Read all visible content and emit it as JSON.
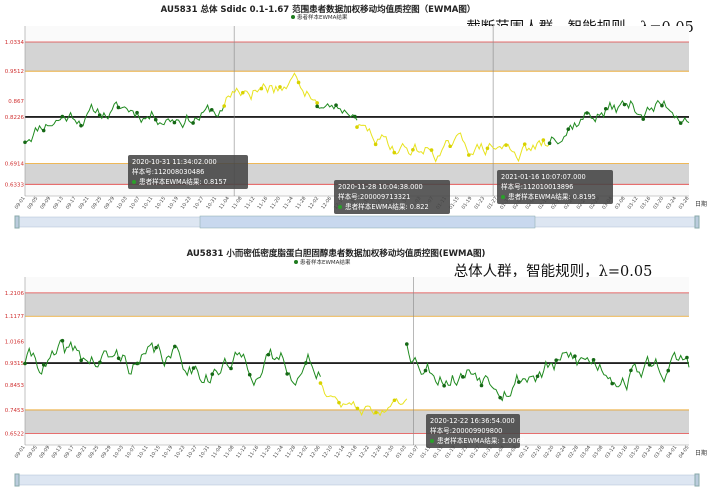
{
  "charts": [
    {
      "title": "AU5831 总体 Sdidc 0.1-1.67 范围患者数据加权移动均值质控图（EWMA图）",
      "caption": "截断范围人群，智能规则，λ=0.05",
      "legend": "患者样本EWMA结果",
      "axis_name": "日期",
      "y_ticks": [
        "1.0334",
        "0.9512",
        "0.867",
        "0.8226",
        "0.6914",
        "0.6333"
      ],
      "x_ticks": [
        "09-01",
        "09-05",
        "09-09",
        "09-13",
        "09-17",
        "09-21",
        "09-25",
        "09-29",
        "10-03",
        "10-07",
        "10-11",
        "10-15",
        "10-19",
        "10-23",
        "10-27",
        "10-31",
        "11-04",
        "11-08",
        "11-12",
        "11-16",
        "11-20",
        "11-24",
        "11-28",
        "12-02",
        "12-06",
        "12-10",
        "12-14",
        "12-18",
        "12-22",
        "12-26",
        "12-30",
        "01-03",
        "01-07",
        "01-11",
        "01-15",
        "01-19",
        "01-23",
        "01-27",
        "01-31",
        "02-04",
        "02-08",
        "02-12",
        "02-16",
        "02-20",
        "02-24",
        "02-28",
        "03-04",
        "03-08",
        "03-12",
        "03-16",
        "03-20",
        "03-24",
        "03-28"
      ],
      "tooltips": [
        {
          "l1": "2020-10-31 11:34:02.000",
          "l2": "样本号:112008030486",
          "l3": "患者样本EWMA结果: 0.8157"
        },
        {
          "l1": "2020-11-28 10:04:38.000",
          "l2": "样本号:200009713321",
          "l3": "患者样本EWMA结果: 0.822"
        },
        {
          "l1": "2021-01-16 10:07:07.000",
          "l2": "样本号:112010013896",
          "l3": "患者样本EWMA结果: 0.8195"
        }
      ],
      "chart_data": {
        "type": "line",
        "title": "AU5831 总体 Sdidc 0.1-1.67 范围患者数据加权移动均值质控图（EWMA图）",
        "xlabel": "日期",
        "ylabel": "",
        "ylim": [
          0.6333,
          1.0334
        ],
        "target": 0.8226,
        "warning_limits": [
          0.6914,
          0.9512
        ],
        "control_limits": [
          0.6333,
          1.0334
        ],
        "series": [
          {
            "name": "患者样本EWMA结果",
            "type": "normal",
            "segment": [
              0,
              0.3
            ],
            "start_y": 0.75,
            "base": 0.84,
            "amp": 0.04,
            "seed": 11
          },
          {
            "name": "",
            "type": "high",
            "segment": [
              0.3,
              0.44
            ],
            "start_y": 0.86,
            "base": 0.93,
            "amp": 0.05,
            "seed": 17
          },
          {
            "name": "",
            "type": "normal",
            "segment": [
              0.44,
              0.5
            ],
            "start_y": 0.88,
            "base": 0.84,
            "amp": 0.03,
            "seed": 23
          },
          {
            "name": "",
            "type": "low",
            "segment": [
              0.5,
              0.79
            ],
            "start_y": 0.79,
            "base": 0.73,
            "amp": 0.04,
            "seed": 29
          },
          {
            "name": "",
            "type": "normal",
            "segment": [
              0.79,
              1.0
            ],
            "start_y": 0.8,
            "base": 0.85,
            "amp": 0.045,
            "seed": 37
          }
        ]
      }
    },
    {
      "title": "AU5831 小而密低密度脂蛋白胆固醇患者数据加权移动均值质控图(EWMA图)",
      "caption": "总体人群，智能规则，λ=0.05",
      "legend": "患者样本EWMA结果",
      "axis_name": "日期",
      "y_ticks": [
        "1.2106",
        "1.1177",
        "1.0166",
        "0.9315",
        "0.8453",
        "0.7453",
        "0.6522"
      ],
      "x_ticks": [
        "09-01",
        "09-05",
        "09-09",
        "09-13",
        "09-17",
        "09-21",
        "09-25",
        "09-29",
        "10-03",
        "10-07",
        "10-11",
        "10-15",
        "10-19",
        "10-23",
        "10-27",
        "10-31",
        "11-04",
        "11-08",
        "11-12",
        "11-16",
        "11-20",
        "11-24",
        "11-28",
        "12-02",
        "12-06",
        "12-10",
        "12-14",
        "12-18",
        "12-22",
        "12-26",
        "12-30",
        "01-03",
        "01-07",
        "01-11",
        "01-15",
        "01-19",
        "01-23",
        "01-27",
        "01-31",
        "02-04",
        "02-08",
        "02-12",
        "02-16",
        "02-20",
        "02-24",
        "02-28",
        "03-04",
        "03-08",
        "03-12",
        "03-16",
        "03-20",
        "03-24",
        "03-28",
        "04-01",
        "04-05"
      ],
      "tooltips": [
        {
          "l1": "2020-12-22 16:36:54.000",
          "l2": "样本号:200009909800",
          "l3": "患者样本EWMA结果: 1.0069"
        }
      ],
      "chart_data": {
        "type": "line",
        "title": "AU5831 小而密低密度脂蛋白胆固醇患者数据加权移动均值质控图(EWMA图)",
        "xlabel": "日期",
        "ylabel": "",
        "ylim": [
          0.6522,
          1.2106
        ],
        "target": 0.9315,
        "warning_limits": [
          0.7453,
          1.1177
        ],
        "control_limits": [
          0.6522,
          1.2106
        ],
        "series": [
          {
            "name": "患者样本EWMA结果",
            "type": "normal",
            "segment": [
              0,
              0.445
            ],
            "start_y": 0.95,
            "base": 0.93,
            "amp": 0.08,
            "seed": 41
          },
          {
            "name": "",
            "type": "low",
            "segment": [
              0.445,
              0.575
            ],
            "start_y": 0.84,
            "base": 0.74,
            "amp": 0.04,
            "seed": 47
          },
          {
            "name": "",
            "type": "normal",
            "segment": [
              0.575,
              1.0
            ],
            "start_y": 1.0069,
            "base": 0.92,
            "amp": 0.08,
            "seed": 53
          }
        ]
      }
    }
  ]
}
